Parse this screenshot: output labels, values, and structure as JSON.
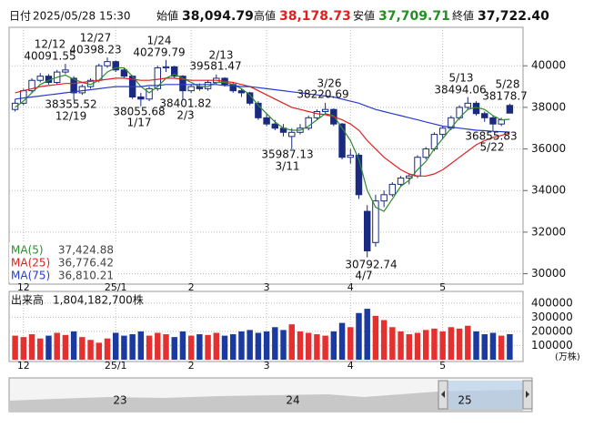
{
  "header": {
    "date_label": "日付",
    "date": "2025/05/28 15:30",
    "open_label": "始値",
    "open": "38,094.79",
    "high_label": "高値",
    "high": "38,178.73",
    "low_label": "安値",
    "low": "37,709.71",
    "close_label": "終値",
    "close": "37,722.40"
  },
  "chart_data": [
    {
      "type": "candlestick",
      "categories": [
        null,
        "12",
        null,
        null,
        null,
        null,
        null,
        null,
        null,
        null,
        null,
        null,
        "25/1",
        null,
        null,
        null,
        null,
        null,
        null,
        null,
        null,
        "2",
        null,
        null,
        null,
        null,
        null,
        null,
        null,
        null,
        "3",
        null,
        null,
        null,
        null,
        null,
        null,
        null,
        null,
        null,
        "4",
        null,
        null,
        null,
        null,
        null,
        null,
        null,
        null,
        null,
        null,
        "5",
        null,
        null,
        null,
        null,
        null,
        null,
        null,
        null
      ],
      "candles": [
        [
          37900,
          38400,
          37800,
          38200
        ],
        [
          38200,
          38900,
          38100,
          38800
        ],
        [
          38800,
          39400,
          38700,
          39300
        ],
        [
          39300,
          39650,
          39200,
          39500
        ],
        [
          39500,
          39600,
          39100,
          39200
        ],
        [
          39200,
          39800,
          39100,
          39700
        ],
        [
          39700,
          40091.55,
          39600,
          39800
        ],
        [
          39400,
          39500,
          38355.52,
          38700
        ],
        [
          38700,
          39100,
          38600,
          39000
        ],
        [
          39000,
          39400,
          38900,
          39300
        ],
        [
          39300,
          40100,
          39200,
          40000
        ],
        [
          40000,
          40398.23,
          39900,
          40200
        ],
        [
          40200,
          40250,
          39700,
          39800
        ],
        [
          39800,
          39900,
          39400,
          39500
        ],
        [
          39500,
          39550,
          38400,
          38500
        ],
        [
          38500,
          38700,
          38055.68,
          38400
        ],
        [
          38400,
          39000,
          38300,
          38900
        ],
        [
          38900,
          40000,
          38800,
          39900
        ],
        [
          39900,
          40279.79,
          39700,
          39950
        ],
        [
          39950,
          40000,
          39400,
          39500
        ],
        [
          39500,
          39550,
          38401.82,
          38800
        ],
        [
          38800,
          39100,
          38700,
          39000
        ],
        [
          39000,
          39150,
          38800,
          38900
        ],
        [
          38900,
          39300,
          38800,
          39200
        ],
        [
          39200,
          39581.47,
          39100,
          39400
        ],
        [
          39400,
          39450,
          39000,
          39100
        ],
        [
          39100,
          39200,
          38700,
          38800
        ],
        [
          38800,
          38900,
          38500,
          38700
        ],
        [
          38700,
          38750,
          38100,
          38200
        ],
        [
          38200,
          38300,
          37400,
          37500
        ],
        [
          37500,
          37700,
          37100,
          37200
        ],
        [
          37200,
          37400,
          36900,
          37000
        ],
        [
          37000,
          37200,
          36600,
          36800
        ],
        [
          36600,
          37000,
          35987.13,
          36800
        ],
        [
          36800,
          37200,
          36700,
          37000
        ],
        [
          37000,
          37600,
          36900,
          37500
        ],
        [
          37500,
          37900,
          37400,
          37800
        ],
        [
          37800,
          38220.69,
          37700,
          37900
        ],
        [
          37900,
          37950,
          37100,
          37200
        ],
        [
          37200,
          37250,
          35500,
          35600
        ],
        [
          35600,
          36000,
          35300,
          35700
        ],
        [
          35700,
          35800,
          33600,
          33800
        ],
        [
          33000,
          33300,
          30792.74,
          31100
        ],
        [
          31500,
          33800,
          31300,
          33500
        ],
        [
          33500,
          34000,
          33200,
          33800
        ],
        [
          33800,
          34400,
          33700,
          34300
        ],
        [
          34300,
          34700,
          34200,
          34600
        ],
        [
          34600,
          34800,
          34300,
          34700
        ],
        [
          34700,
          35700,
          34600,
          35600
        ],
        [
          35600,
          36100,
          35500,
          36000
        ],
        [
          36000,
          36800,
          35900,
          36700
        ],
        [
          36700,
          37100,
          36500,
          37000
        ],
        [
          37000,
          37600,
          36900,
          37500
        ],
        [
          37500,
          38100,
          37400,
          38000
        ],
        [
          38000,
          38494.06,
          37900,
          38200
        ],
        [
          38200,
          38300,
          37600,
          37700
        ],
        [
          37700,
          37800,
          37300,
          37500
        ],
        [
          37500,
          37600,
          36855.83,
          37200
        ],
        [
          37200,
          37500,
          37100,
          37400
        ],
        [
          38094.79,
          38178.73,
          37709.71,
          37722.4
        ]
      ],
      "up_color": "#ffffff",
      "down_color": "#1a2a80",
      "series": [
        {
          "name": "MA(5)",
          "color": "#2e8b2e",
          "legend_value": "37,424.88",
          "values": [
            38000,
            38300,
            38700,
            39100,
            39300,
            39450,
            39550,
            39350,
            39200,
            39100,
            39300,
            39700,
            39900,
            39900,
            39500,
            39000,
            38700,
            39000,
            39400,
            39600,
            39400,
            39200,
            39000,
            39000,
            39200,
            39200,
            39100,
            38900,
            38600,
            38100,
            37700,
            37300,
            37000,
            36900,
            36900,
            37100,
            37400,
            37700,
            37600,
            37000,
            36400,
            35500,
            34000,
            33200,
            33000,
            33600,
            34200,
            34500,
            35000,
            35400,
            36000,
            36500,
            37000,
            37500,
            37900,
            38000,
            37900,
            37600,
            37400,
            37424.88
          ]
        },
        {
          "name": "MA(25)",
          "color": "#e02020",
          "legend_value": "36,776.42",
          "values": [
            38700,
            38800,
            38900,
            39000,
            39050,
            39100,
            39150,
            39150,
            39200,
            39250,
            39300,
            39350,
            39400,
            39400,
            39350,
            39300,
            39300,
            39350,
            39400,
            39400,
            39350,
            39300,
            39300,
            39300,
            39300,
            39250,
            39200,
            39100,
            39000,
            38800,
            38600,
            38400,
            38200,
            38000,
            37900,
            37800,
            37700,
            37650,
            37550,
            37400,
            37200,
            36900,
            36400,
            36000,
            35600,
            35300,
            35000,
            34800,
            34700,
            34700,
            34800,
            35000,
            35300,
            35600,
            35900,
            36200,
            36400,
            36550,
            36650,
            36776.42
          ]
        },
        {
          "name": "MA(75)",
          "color": "#2a3ad0",
          "legend_value": "36,810.21",
          "values": [
            38400,
            38450,
            38500,
            38550,
            38600,
            38650,
            38700,
            38750,
            38800,
            38850,
            38900,
            38950,
            39000,
            39000,
            39000,
            39000,
            39050,
            39050,
            39100,
            39100,
            39100,
            39100,
            39100,
            39100,
            39100,
            39050,
            39050,
            39000,
            39000,
            38950,
            38900,
            38850,
            38800,
            38750,
            38700,
            38650,
            38600,
            38550,
            38500,
            38400,
            38300,
            38200,
            38050,
            37900,
            37800,
            37700,
            37600,
            37500,
            37400,
            37300,
            37200,
            37100,
            37050,
            37000,
            36950,
            36900,
            36880,
            36850,
            36830,
            36810.21
          ]
        }
      ],
      "ylim": [
        29500,
        41850
      ],
      "yticks": [
        30000,
        32000,
        34000,
        36000,
        38000,
        40000
      ],
      "grid": true,
      "annotations": [
        {
          "date": "12/12",
          "value": 40091.55
        },
        {
          "date": "12/19",
          "value": 38355.52
        },
        {
          "date": "12/27",
          "value": 40398.23
        },
        {
          "date": "1/17",
          "value": 38055.68
        },
        {
          "date": "1/24",
          "value": 40279.79
        },
        {
          "date": "2/3",
          "value": 38401.82
        },
        {
          "date": "2/13",
          "value": 39581.47
        },
        {
          "date": "3/11",
          "value": 35987.13
        },
        {
          "date": "3/26",
          "value": 38220.69
        },
        {
          "date": "4/7",
          "value": 30792.74
        },
        {
          "date": "5/13",
          "value": 38494.06
        },
        {
          "date": "5/22",
          "value": 36855.83
        },
        {
          "date": "5/28",
          "value": 38178.7
        }
      ]
    },
    {
      "type": "bar",
      "label": "出来高",
      "total": "1,804,182,700株",
      "unit": "(万株)",
      "up_color": "#e53030",
      "down_color": "#1a3aa0",
      "values": [
        170000,
        160000,
        180000,
        150000,
        170000,
        190000,
        175000,
        200000,
        160000,
        140000,
        120000,
        150000,
        190000,
        170000,
        180000,
        200000,
        170000,
        190000,
        180000,
        160000,
        200000,
        170000,
        180000,
        175000,
        190000,
        170000,
        180000,
        200000,
        210000,
        190000,
        200000,
        230000,
        210000,
        250000,
        200000,
        190000,
        180000,
        170000,
        200000,
        260000,
        230000,
        330000,
        360000,
        310000,
        280000,
        230000,
        200000,
        180000,
        190000,
        210000,
        220000,
        200000,
        230000,
        220000,
        240000,
        200000,
        180000,
        190000,
        170000,
        180418
      ],
      "ylim": [
        0,
        470000
      ],
      "yticks": [
        100000,
        200000,
        300000,
        400000
      ]
    }
  ],
  "navigator": {
    "labels": [
      "23",
      "24",
      "25"
    ]
  }
}
